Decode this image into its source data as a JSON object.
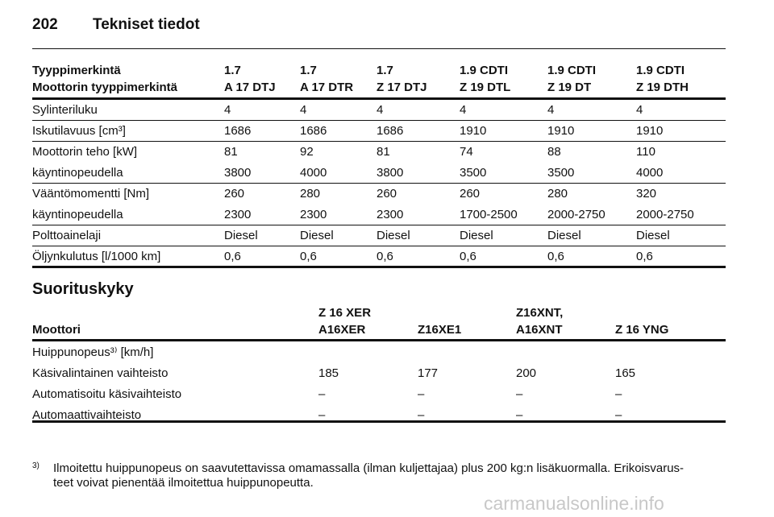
{
  "header": {
    "page": "202",
    "title": "Tekniset tiedot"
  },
  "table1": {
    "header": [
      [
        "Tyyppimerkintä",
        "1.7",
        "1.7",
        "1.7",
        "1.9 CDTI",
        "1.9 CDTI",
        "1.9 CDTI"
      ],
      [
        "Moottorin tyyppimerkintä",
        "A 17 DTJ",
        "A 17 DTR",
        "Z 17 DTJ",
        "Z 19 DTL",
        "Z 19 DT",
        "Z 19 DTH"
      ]
    ],
    "groups": [
      [
        [
          "Sylinteriluku",
          "4",
          "4",
          "4",
          "4",
          "4",
          "4"
        ]
      ],
      [
        [
          "Iskutilavuus [cm³]",
          "1686",
          "1686",
          "1686",
          "1910",
          "1910",
          "1910"
        ]
      ],
      [
        [
          "Moottorin teho [kW]",
          "81",
          "92",
          "81",
          "74",
          "88",
          "110"
        ],
        [
          "käyntinopeudella",
          "3800",
          "4000",
          "3800",
          "3500",
          "3500",
          "4000"
        ]
      ],
      [
        [
          "Vääntömomentti [Nm]",
          "260",
          "280",
          "260",
          "260",
          "280",
          "320"
        ],
        [
          "käyntinopeudella",
          "2300",
          "2300",
          "2300",
          "1700-2500",
          "2000-2750",
          "2000-2750"
        ]
      ],
      [
        [
          "Polttoainelaji",
          "Diesel",
          "Diesel",
          "Diesel",
          "Diesel",
          "Diesel",
          "Diesel"
        ]
      ],
      [
        [
          "Öljynkulutus [l/1000 km]",
          "0,6",
          "0,6",
          "0,6",
          "0,6",
          "0,6",
          "0,6"
        ]
      ]
    ]
  },
  "section": {
    "title": "Suorituskyky"
  },
  "table2": {
    "header": [
      [
        "Moottori"
      ],
      [
        "Z 16 XER",
        "A16XER"
      ],
      [
        "Z16XE1"
      ],
      [
        "Z16XNT,",
        "A16XNT"
      ],
      [
        "Z 16 YNG"
      ]
    ],
    "rows": [
      [
        "Huippunopeus³⁾ [km/h]"
      ],
      [
        "Käsivalintainen vaihteisto",
        "185",
        "177",
        "200",
        "165"
      ],
      [
        "Automatisoitu käsivaihteisto",
        "–",
        "–",
        "–",
        "–"
      ],
      [
        "Automaattivaihteisto",
        "–",
        "–",
        "–",
        "–"
      ]
    ]
  },
  "footnote": {
    "mark": "3)",
    "lines": [
      "Ilmoitettu huippunopeus on saavutettavissa omamassalla (ilman kuljettajaa) plus 200 kg:n lisäkuormalla. Erikoisvarus-",
      "teet voivat pienentää ilmoitettua huippunopeutta."
    ]
  },
  "watermark": "carmanualsonline.info"
}
